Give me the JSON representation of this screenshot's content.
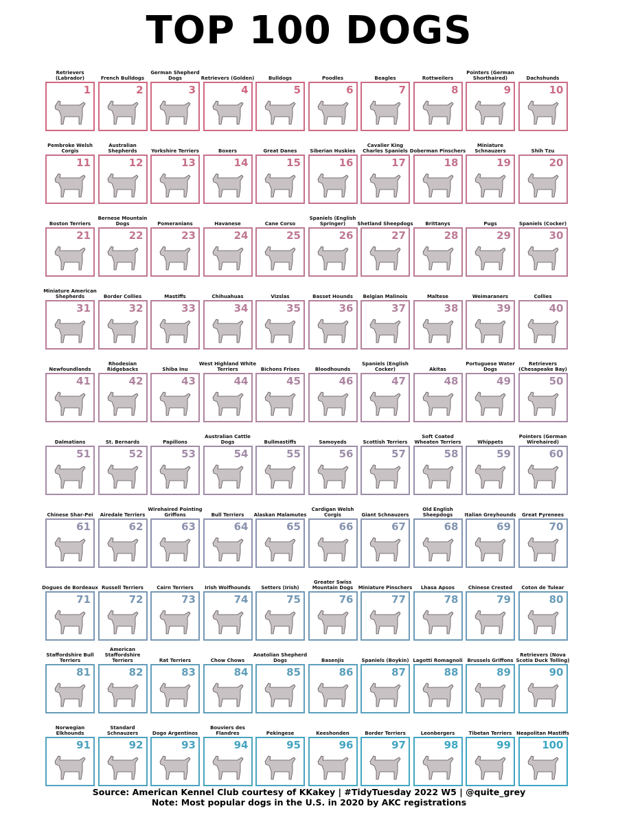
{
  "title": "TOP 100 DOGS",
  "footer": {
    "source": "Source: American Kennel Club courtesy of KKakey  |  #TidyTuesday 2022 W5  |  @quite_grey",
    "note": "Note: Most popular dogs in the U.S. in 2020 by AKC registrations"
  },
  "colors": {
    "rank_gradient_start": "#d2667f",
    "rank_gradient_mid": "#a98aa6",
    "rank_gradient_end": "#3aa7c4",
    "dog_shade": "#9a8f93"
  },
  "breeds": [
    {
      "rank": "1",
      "name": "Retrievers (Labrador)"
    },
    {
      "rank": "2",
      "name": "French Bulldogs"
    },
    {
      "rank": "3",
      "name": "German Shepherd Dogs"
    },
    {
      "rank": "4",
      "name": "Retrievers (Golden)"
    },
    {
      "rank": "5",
      "name": "Bulldogs"
    },
    {
      "rank": "6",
      "name": "Poodles"
    },
    {
      "rank": "7",
      "name": "Beagles"
    },
    {
      "rank": "8",
      "name": "Rottweilers"
    },
    {
      "rank": "9",
      "name": "Pointers (German Shorthaired)"
    },
    {
      "rank": "10",
      "name": "Dachshunds"
    },
    {
      "rank": "11",
      "name": "Pembroke Welsh Corgis"
    },
    {
      "rank": "12",
      "name": "Australian Shepherds"
    },
    {
      "rank": "13",
      "name": "Yorkshire Terriers"
    },
    {
      "rank": "14",
      "name": "Boxers"
    },
    {
      "rank": "15",
      "name": "Great Danes"
    },
    {
      "rank": "16",
      "name": "Siberian Huskies"
    },
    {
      "rank": "17",
      "name": "Cavalier King Charles Spaniels"
    },
    {
      "rank": "18",
      "name": "Doberman Pinschers"
    },
    {
      "rank": "19",
      "name": "Miniature Schnauzers"
    },
    {
      "rank": "20",
      "name": "Shih Tzu"
    },
    {
      "rank": "21",
      "name": "Boston Terriers"
    },
    {
      "rank": "22",
      "name": "Bernese Mountain Dogs"
    },
    {
      "rank": "23",
      "name": "Pomeranians"
    },
    {
      "rank": "24",
      "name": "Havanese"
    },
    {
      "rank": "25",
      "name": "Cane Corso"
    },
    {
      "rank": "26",
      "name": "Spaniels (English Springer)"
    },
    {
      "rank": "27",
      "name": "Shetland Sheepdogs"
    },
    {
      "rank": "28",
      "name": "Brittanys"
    },
    {
      "rank": "29",
      "name": "Pugs"
    },
    {
      "rank": "30",
      "name": "Spaniels (Cocker)"
    },
    {
      "rank": "31",
      "name": "Miniature American Shepherds"
    },
    {
      "rank": "32",
      "name": "Border Collies"
    },
    {
      "rank": "33",
      "name": "Mastiffs"
    },
    {
      "rank": "34",
      "name": "Chihuahuas"
    },
    {
      "rank": "35",
      "name": "Vizslas"
    },
    {
      "rank": "36",
      "name": "Basset Hounds"
    },
    {
      "rank": "37",
      "name": "Belgian Malinois"
    },
    {
      "rank": "38",
      "name": "Maltese"
    },
    {
      "rank": "39",
      "name": "Weimaraners"
    },
    {
      "rank": "40",
      "name": "Collies"
    },
    {
      "rank": "41",
      "name": "Newfoundlands"
    },
    {
      "rank": "42",
      "name": "Rhodesian Ridgebacks"
    },
    {
      "rank": "43",
      "name": "Shiba Inu"
    },
    {
      "rank": "44",
      "name": "West Highland White Terriers"
    },
    {
      "rank": "45",
      "name": "Bichons Frises"
    },
    {
      "rank": "46",
      "name": "Bloodhounds"
    },
    {
      "rank": "47",
      "name": "Spaniels (English Cocker)"
    },
    {
      "rank": "48",
      "name": "Akitas"
    },
    {
      "rank": "49",
      "name": "Portuguese Water Dogs"
    },
    {
      "rank": "50",
      "name": "Retrievers (Chesapeake Bay)"
    },
    {
      "rank": "51",
      "name": "Dalmatians"
    },
    {
      "rank": "52",
      "name": "St. Bernards"
    },
    {
      "rank": "53",
      "name": "Papillons"
    },
    {
      "rank": "54",
      "name": "Australian Cattle Dogs"
    },
    {
      "rank": "55",
      "name": "Bullmastiffs"
    },
    {
      "rank": "56",
      "name": "Samoyeds"
    },
    {
      "rank": "57",
      "name": "Scottish Terriers"
    },
    {
      "rank": "58",
      "name": "Soft Coated Wheaten Terriers"
    },
    {
      "rank": "59",
      "name": "Whippets"
    },
    {
      "rank": "60",
      "name": "Pointers (German Wirehaired)"
    },
    {
      "rank": "61",
      "name": "Chinese Shar-Pei"
    },
    {
      "rank": "62",
      "name": "Airedale Terriers"
    },
    {
      "rank": "63",
      "name": "Wirehaired Pointing Griffons"
    },
    {
      "rank": "64",
      "name": "Bull Terriers"
    },
    {
      "rank": "65",
      "name": "Alaskan Malamutes"
    },
    {
      "rank": "66",
      "name": "Cardigan Welsh Corgis"
    },
    {
      "rank": "67",
      "name": "Giant Schnauzers"
    },
    {
      "rank": "68",
      "name": "Old English Sheepdogs"
    },
    {
      "rank": "69",
      "name": "Italian Greyhounds"
    },
    {
      "rank": "70",
      "name": "Great Pyrenees"
    },
    {
      "rank": "71",
      "name": "Dogues de Bordeaux"
    },
    {
      "rank": "72",
      "name": "Russell Terriers"
    },
    {
      "rank": "73",
      "name": "Cairn Terriers"
    },
    {
      "rank": "74",
      "name": "Irish Wolfhounds"
    },
    {
      "rank": "75",
      "name": "Setters (Irish)"
    },
    {
      "rank": "76",
      "name": "Greater Swiss Mountain Dogs"
    },
    {
      "rank": "77",
      "name": "Miniature Pinschers"
    },
    {
      "rank": "78",
      "name": "Lhasa Apsos"
    },
    {
      "rank": "79",
      "name": "Chinese Crested"
    },
    {
      "rank": "80",
      "name": "Coton de Tulear"
    },
    {
      "rank": "81",
      "name": "Staffordshire Bull Terriers"
    },
    {
      "rank": "82",
      "name": "American Staffordshire Terriers"
    },
    {
      "rank": "83",
      "name": "Rat Terriers"
    },
    {
      "rank": "84",
      "name": "Chow Chows"
    },
    {
      "rank": "85",
      "name": "Anatolian Shepherd Dogs"
    },
    {
      "rank": "86",
      "name": "Basenjis"
    },
    {
      "rank": "87",
      "name": "Spaniels (Boykin)"
    },
    {
      "rank": "88",
      "name": "Lagotti Romagnoli"
    },
    {
      "rank": "89",
      "name": "Brussels Griffons"
    },
    {
      "rank": "90",
      "name": "Retrievers (Nova Scotia Duck Tolling)"
    },
    {
      "rank": "91",
      "name": "Norwegian Elkhounds"
    },
    {
      "rank": "92",
      "name": "Standard Schnauzers"
    },
    {
      "rank": "93",
      "name": "Dogo Argentinos"
    },
    {
      "rank": "94",
      "name": "Bouviers des Flandres"
    },
    {
      "rank": "95",
      "name": "Pekingese"
    },
    {
      "rank": "96",
      "name": "Keeshonden"
    },
    {
      "rank": "97",
      "name": "Border Terriers"
    },
    {
      "rank": "98",
      "name": "Leonbergers"
    },
    {
      "rank": "99",
      "name": "Tibetan Terriers"
    },
    {
      "rank": "100",
      "name": "Neapolitan Mastiffs"
    }
  ]
}
